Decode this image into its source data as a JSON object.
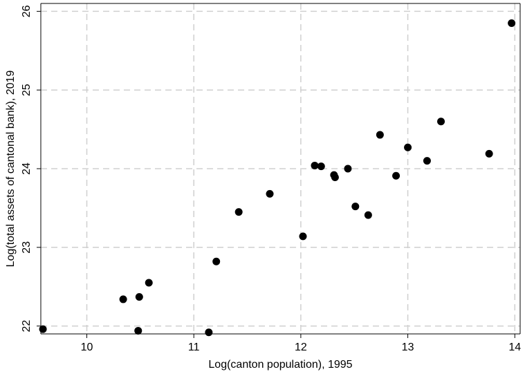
{
  "chart_data": {
    "type": "scatter",
    "title": "",
    "xlabel": "Log(canton population), 1995",
    "ylabel": "Log(total assets of cantonal bank), 2019",
    "xlim": [
      9.57,
      14.05
    ],
    "ylim": [
      21.9,
      26.1
    ],
    "xticks": [
      10,
      11,
      12,
      13,
      14
    ],
    "yticks": [
      22,
      23,
      24,
      25,
      26
    ],
    "grid": true,
    "marker_color": "#000000",
    "grid_color": "#cfcfcf",
    "points": [
      {
        "x": 9.59,
        "y": 21.96
      },
      {
        "x": 10.34,
        "y": 22.34
      },
      {
        "x": 10.49,
        "y": 22.37
      },
      {
        "x": 10.48,
        "y": 21.94
      },
      {
        "x": 10.58,
        "y": 22.55
      },
      {
        "x": 11.14,
        "y": 21.92
      },
      {
        "x": 11.21,
        "y": 22.82
      },
      {
        "x": 11.42,
        "y": 23.45
      },
      {
        "x": 11.71,
        "y": 23.68
      },
      {
        "x": 12.02,
        "y": 23.14
      },
      {
        "x": 12.13,
        "y": 24.04
      },
      {
        "x": 12.19,
        "y": 24.03
      },
      {
        "x": 12.31,
        "y": 23.92
      },
      {
        "x": 12.32,
        "y": 23.89
      },
      {
        "x": 12.44,
        "y": 24.0
      },
      {
        "x": 12.51,
        "y": 23.52
      },
      {
        "x": 12.63,
        "y": 23.41
      },
      {
        "x": 12.74,
        "y": 24.43
      },
      {
        "x": 12.89,
        "y": 23.91
      },
      {
        "x": 13.0,
        "y": 24.27
      },
      {
        "x": 13.18,
        "y": 24.1
      },
      {
        "x": 13.31,
        "y": 24.6
      },
      {
        "x": 13.76,
        "y": 24.19
      },
      {
        "x": 13.97,
        "y": 25.85
      }
    ]
  }
}
